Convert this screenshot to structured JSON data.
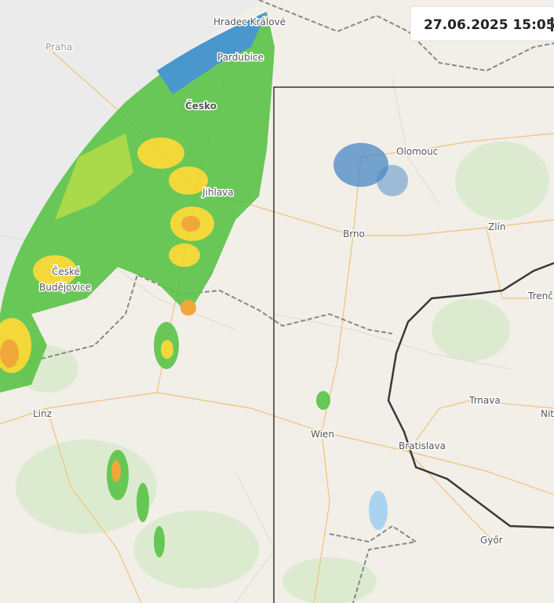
{
  "timestamp": "27.06.2025 15:05",
  "places": [
    {
      "label": "Hradec Králové"
    },
    {
      "label": "Praha"
    },
    {
      "label": "Pardubice"
    },
    {
      "label": "Česko"
    },
    {
      "label": "Olomouc"
    },
    {
      "label": "Jihlava"
    },
    {
      "label": "Zlín"
    },
    {
      "label": "Brno"
    },
    {
      "label": "České"
    },
    {
      "label": "Budějovice"
    },
    {
      "label": "Trenč"
    },
    {
      "label": "Linz"
    },
    {
      "label": "Wien"
    },
    {
      "label": "Bratislava"
    },
    {
      "label": "Trnava"
    },
    {
      "label": "Nit"
    },
    {
      "label": "Győr"
    }
  ]
}
